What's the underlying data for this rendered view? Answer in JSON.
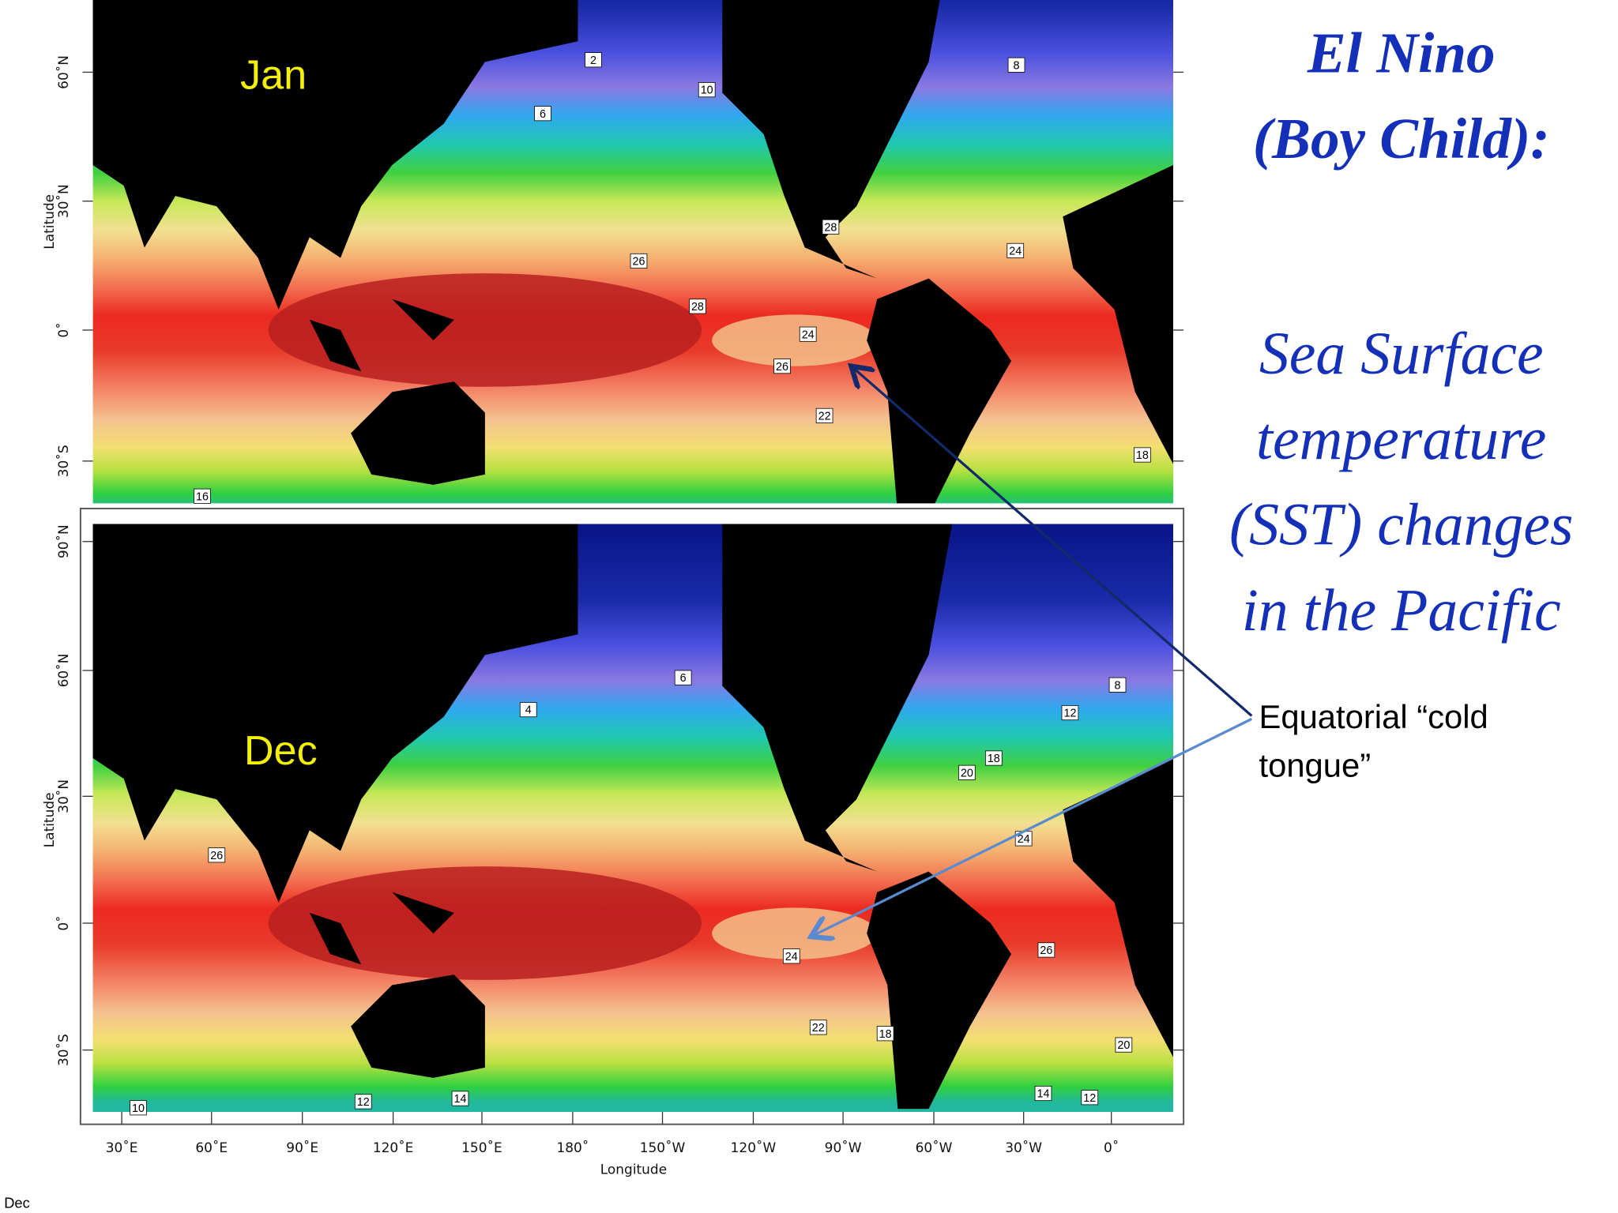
{
  "slide": {
    "title_lines": [
      "El Nino",
      "(Boy Child):"
    ],
    "subtitle_lines": [
      "Sea Surface",
      "temperature",
      "(SST) changes",
      "in the Pacific"
    ],
    "annotation_lines": [
      "Equatorial “cold",
      "tongue”"
    ],
    "footer": "Dec",
    "maps": [
      {
        "month": "Jan",
        "y_axis_label": "Latitude",
        "lat_ticks": [
          "60˚N",
          "30˚N",
          "0˚",
          "30˚S"
        ],
        "contour_labels": [
          "2",
          "10",
          "6",
          "8",
          "28",
          "26",
          "28",
          "24",
          "24",
          "26",
          "22",
          "18",
          "16"
        ]
      },
      {
        "month": "Dec",
        "y_axis_label": "Latitude",
        "lat_ticks": [
          "90˚N",
          "60˚N",
          "30˚N",
          "0˚",
          "30˚S"
        ],
        "contour_labels": [
          "6",
          "4",
          "8",
          "12",
          "18",
          "20",
          "26",
          "24",
          "24",
          "26",
          "22",
          "18",
          "20",
          "14",
          "12",
          "14",
          "10",
          "12"
        ]
      }
    ],
    "x_axis_label": "Longitude",
    "lon_ticks": [
      "30˚E",
      "60˚E",
      "90˚E",
      "120˚E",
      "150˚E",
      "180˚",
      "150˚W",
      "120˚W",
      "90˚W",
      "60˚W",
      "30˚W",
      "0˚"
    ]
  }
}
